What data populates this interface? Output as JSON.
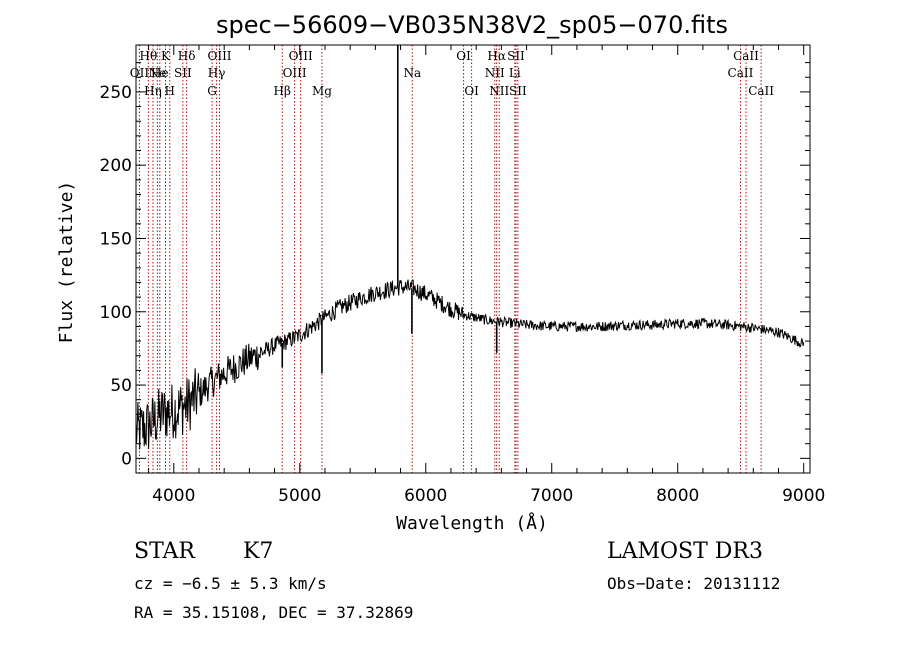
{
  "chart_data": {
    "type": "line",
    "title": "spec−56609−VB035N38V2_sp05−070.fits",
    "xlabel": "Wavelength (Å)",
    "ylabel": "Flux (relative)",
    "xlim": [
      3700,
      9050
    ],
    "ylim": [
      -10,
      282
    ],
    "xticks": [
      4000,
      5000,
      6000,
      7000,
      8000,
      9000
    ],
    "yticks": [
      0,
      50,
      100,
      150,
      200,
      250
    ],
    "xtick_labels": [
      "4000",
      "5000",
      "6000",
      "7000",
      "8000",
      "9000"
    ],
    "ytick_labels": [
      "0",
      "50",
      "100",
      "150",
      "200",
      "250"
    ],
    "line_color": "#000000",
    "marker_color": "#aa1111",
    "spectrum": {
      "x": [
        3700,
        3800,
        3900,
        4000,
        4100,
        4200,
        4300,
        4400,
        4500,
        4600,
        4700,
        4800,
        4900,
        5000,
        5100,
        5200,
        5300,
        5400,
        5500,
        5600,
        5700,
        5800,
        5900,
        6000,
        6100,
        6200,
        6300,
        6400,
        6500,
        6600,
        6700,
        6800,
        7000,
        7200,
        7400,
        7600,
        7800,
        8000,
        8200,
        8400,
        8600,
        8800,
        8900,
        9000
      ],
      "y": [
        18,
        22,
        30,
        33,
        36,
        44,
        52,
        58,
        63,
        68,
        72,
        77,
        80,
        84,
        90,
        96,
        102,
        106,
        110,
        113,
        115,
        117,
        116,
        112,
        107,
        102,
        98,
        96,
        94,
        93,
        92,
        91,
        90,
        90,
        90,
        91,
        91,
        92,
        92,
        91,
        89,
        86,
        82,
        78
      ]
    },
    "features": [
      {
        "x": 5778,
        "y": 282
      },
      {
        "x": 5890,
        "y": 85
      },
      {
        "x": 5176,
        "y": 58
      },
      {
        "x": 4861,
        "y": 62
      },
      {
        "x": 6563,
        "y": 72
      }
    ],
    "lines": [
      {
        "x": 3798,
        "label": "Hθ",
        "row": 0
      },
      {
        "x": 3835,
        "label": "Hη",
        "row": 2
      },
      {
        "x": 3727,
        "label": "OII",
        "row": 1
      },
      {
        "x": 3869,
        "label": "Ne",
        "row": 1
      },
      {
        "x": 3889,
        "label": "He",
        "row": 1
      },
      {
        "x": 3934,
        "label": "K",
        "row": 0
      },
      {
        "x": 3968,
        "label": "H",
        "row": 2
      },
      {
        "x": 4072,
        "label": "SII",
        "row": 1
      },
      {
        "x": 4102,
        "label": "Hδ",
        "row": 0
      },
      {
        "x": 4304,
        "label": "G",
        "row": 2
      },
      {
        "x": 4340,
        "label": "Hγ",
        "row": 1
      },
      {
        "x": 4363,
        "label": "OIII",
        "row": 0
      },
      {
        "x": 4861,
        "label": "Hβ",
        "row": 2
      },
      {
        "x": 4959,
        "label": "OIII",
        "row": 1
      },
      {
        "x": 5007,
        "label": "OIII",
        "row": 0
      },
      {
        "x": 5176,
        "label": "Mg",
        "row": 2
      },
      {
        "x": 5893,
        "label": "Na",
        "row": 1
      },
      {
        "x": 6300,
        "label": "OI",
        "row": 0
      },
      {
        "x": 6364,
        "label": "OI",
        "row": 2
      },
      {
        "x": 6548,
        "label": "NII",
        "row": 1
      },
      {
        "x": 6563,
        "label": "Hα",
        "row": 0
      },
      {
        "x": 6583,
        "label": "NII",
        "row": 2
      },
      {
        "x": 6707,
        "label": "Li",
        "row": 1
      },
      {
        "x": 6716,
        "label": "SII",
        "row": 0
      },
      {
        "x": 6731,
        "label": "SII",
        "row": 2
      },
      {
        "x": 8498,
        "label": "CaII",
        "row": 1
      },
      {
        "x": 8542,
        "label": "CaII",
        "row": 0
      },
      {
        "x": 8662,
        "label": "CaII",
        "row": 2
      }
    ]
  },
  "info": {
    "object_class": "STAR",
    "subclass": "K7",
    "survey": "LAMOST DR3",
    "cz": "cz = −6.5 ± 5.3 km/s",
    "obs_date": "Obs−Date: 20131112",
    "coords": "RA =  35.15108, DEC =  37.32869"
  }
}
